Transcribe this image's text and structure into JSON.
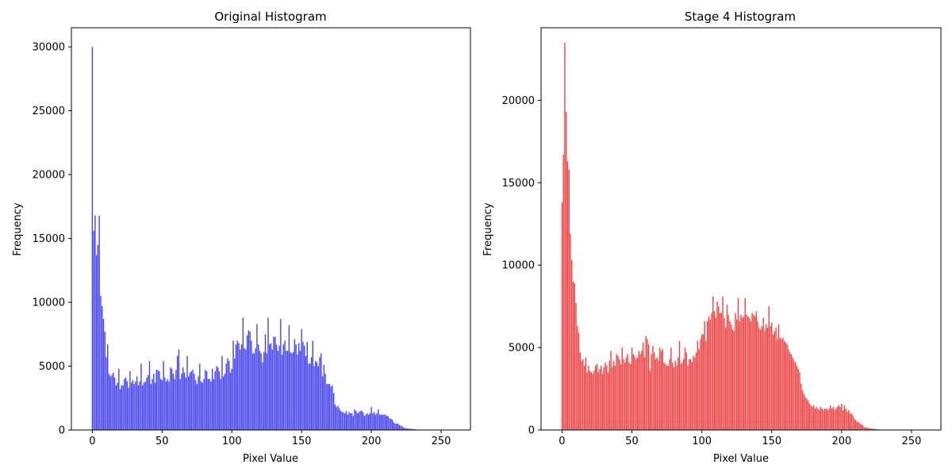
{
  "chart_data": [
    {
      "type": "bar",
      "title": "Original Histogram",
      "xlabel": "Pixel Value",
      "ylabel": "Frequency",
      "color": "#4444ff",
      "xlim": [
        -15,
        271
      ],
      "ylim": [
        0,
        31500
      ],
      "xticks": [
        0,
        50,
        100,
        150,
        200,
        250
      ],
      "yticks": [
        0,
        5000,
        10000,
        15000,
        20000,
        25000,
        30000
      ],
      "x_start": 0,
      "values": [
        30000,
        15600,
        16800,
        13700,
        14500,
        16800,
        10500,
        9700,
        8700,
        7700,
        5700,
        6700,
        4400,
        4200,
        4300,
        4500,
        4100,
        3500,
        3700,
        4800,
        3200,
        3500,
        3500,
        4000,
        4100,
        3800,
        3300,
        4600,
        3700,
        3900,
        3600,
        3800,
        4200,
        3500,
        3800,
        5200,
        3500,
        3700,
        3800,
        4100,
        4300,
        5400,
        3600,
        4000,
        4400,
        3700,
        4700,
        4700,
        4600,
        4000,
        3900,
        5400,
        4100,
        3800,
        4000,
        3800,
        4900,
        4800,
        4400,
        4000,
        4700,
        5800,
        6300,
        4000,
        4400,
        4900,
        4500,
        4100,
        5800,
        4200,
        4500,
        4600,
        4700,
        4400,
        3900,
        3600,
        4200,
        5200,
        3800,
        3700,
        4000,
        4700,
        4600,
        4000,
        4000,
        3800,
        4800,
        4000,
        4600,
        5000,
        4900,
        4600,
        4000,
        5800,
        4200,
        4400,
        5200,
        5600,
        5400,
        4500,
        4800,
        7000,
        5600,
        6700,
        7000,
        6800,
        6300,
        6700,
        8800,
        6400,
        6300,
        7400,
        7800,
        7700,
        7000,
        6000,
        6000,
        6400,
        8300,
        6700,
        6200,
        6000,
        5300,
        6100,
        7500,
        6000,
        8800,
        6700,
        6800,
        6300,
        7300,
        7300,
        6700,
        6200,
        6600,
        8700,
        5900,
        6700,
        7000,
        6200,
        6200,
        8200,
        6100,
        6000,
        6100,
        7100,
        6700,
        5900,
        6800,
        6200,
        7900,
        6900,
        6600,
        5800,
        6900,
        5200,
        5200,
        5700,
        7000,
        5000,
        5400,
        5300,
        5000,
        5700,
        6000,
        4200,
        5100,
        4400,
        3600,
        3600,
        3600,
        3400,
        3500,
        2900,
        2000,
        1800,
        1900,
        1700,
        1500,
        1400,
        1400,
        1300,
        1500,
        1200,
        1400,
        1300,
        1300,
        1100,
        1600,
        1500,
        1300,
        1400,
        1500,
        1500,
        1400,
        1100,
        1200,
        1300,
        1200,
        1300,
        1800,
        1300,
        1400,
        1200,
        1300,
        1600,
        1200,
        1200,
        1200,
        1200,
        1200,
        1100,
        1100,
        900,
        900,
        800,
        600,
        500,
        500,
        500,
        400,
        350,
        300,
        200,
        150,
        150,
        120,
        100,
        90,
        80,
        70,
        60,
        50,
        40,
        30,
        25,
        20,
        15,
        10,
        8,
        6,
        5,
        4,
        3,
        2,
        2,
        1,
        1,
        1,
        0,
        0,
        0,
        0,
        0,
        0,
        0,
        0,
        0,
        0,
        0,
        0,
        0,
        0,
        0,
        0,
        0,
        0,
        0
      ]
    },
    {
      "type": "bar",
      "title": "Stage 4 Histogram",
      "xlabel": "Pixel Value",
      "ylabel": "Frequency",
      "color": "#f04444",
      "xlim": [
        -15,
        271
      ],
      "ylim": [
        0,
        24400
      ],
      "xticks": [
        0,
        50,
        100,
        150,
        200,
        250
      ],
      "yticks": [
        0,
        5000,
        10000,
        15000,
        20000
      ],
      "x_start": 0,
      "values": [
        13800,
        16700,
        23500,
        19300,
        16300,
        15800,
        11900,
        10300,
        9000,
        8900,
        7700,
        6300,
        5900,
        4700,
        4200,
        4300,
        3900,
        4400,
        3500,
        3900,
        3600,
        3500,
        3400,
        3600,
        3900,
        4000,
        3500,
        3700,
        3900,
        3400,
        3800,
        4100,
        3900,
        3500,
        4200,
        4800,
        3800,
        4200,
        3900,
        4600,
        4500,
        4300,
        4000,
        5000,
        4300,
        4100,
        4400,
        4600,
        4100,
        4000,
        5000,
        4600,
        4500,
        4300,
        4400,
        4800,
        4600,
        4800,
        5300,
        4400,
        5700,
        5500,
        5200,
        3600,
        4600,
        5100,
        4700,
        4300,
        4400,
        4200,
        5000,
        4800,
        4900,
        4100,
        4000,
        3900,
        3900,
        4300,
        5000,
        4100,
        3800,
        4200,
        3900,
        4400,
        5400,
        4000,
        4100,
        4300,
        5000,
        4700,
        3900,
        4300,
        4300,
        4100,
        4500,
        4400,
        4700,
        5400,
        4900,
        5500,
        5800,
        5800,
        6600,
        5400,
        6600,
        6900,
        6700,
        7100,
        8100,
        7200,
        6800,
        7800,
        7500,
        7100,
        7100,
        8100,
        6800,
        6200,
        7600,
        7000,
        6600,
        6400,
        6100,
        6000,
        7100,
        6700,
        8000,
        6600,
        7000,
        6800,
        6900,
        8000,
        7000,
        6900,
        6800,
        6600,
        7100,
        7000,
        6900,
        7200,
        6600,
        6200,
        6100,
        6300,
        6800,
        6000,
        6400,
        6200,
        7500,
        6300,
        6500,
        5800,
        6000,
        6200,
        5500,
        6400,
        5600,
        5500,
        5600,
        5400,
        5300,
        5200,
        4900,
        4700,
        4600,
        4400,
        4200,
        4100,
        3900,
        3700,
        3500,
        2800,
        2400,
        2200,
        2000,
        1900,
        1800,
        1600,
        1500,
        1400,
        1500,
        1300,
        1400,
        1300,
        1200,
        1400,
        1300,
        1200,
        1300,
        1300,
        1200,
        1300,
        1500,
        1300,
        1400,
        1200,
        1300,
        1400,
        1500,
        1400,
        1600,
        1200,
        1500,
        1300,
        1100,
        1200,
        1000,
        1000,
        900,
        700,
        600,
        500,
        500,
        400,
        350,
        300,
        200,
        150,
        150,
        120,
        100,
        90,
        80,
        70,
        60,
        50,
        40,
        30,
        25,
        20,
        15,
        10,
        8,
        6,
        5,
        4,
        3,
        2,
        2,
        1,
        1,
        1,
        0,
        0,
        0,
        0,
        0,
        0,
        0,
        0,
        0,
        0,
        0,
        0,
        0,
        0,
        0,
        0,
        0,
        0,
        0
      ]
    }
  ]
}
